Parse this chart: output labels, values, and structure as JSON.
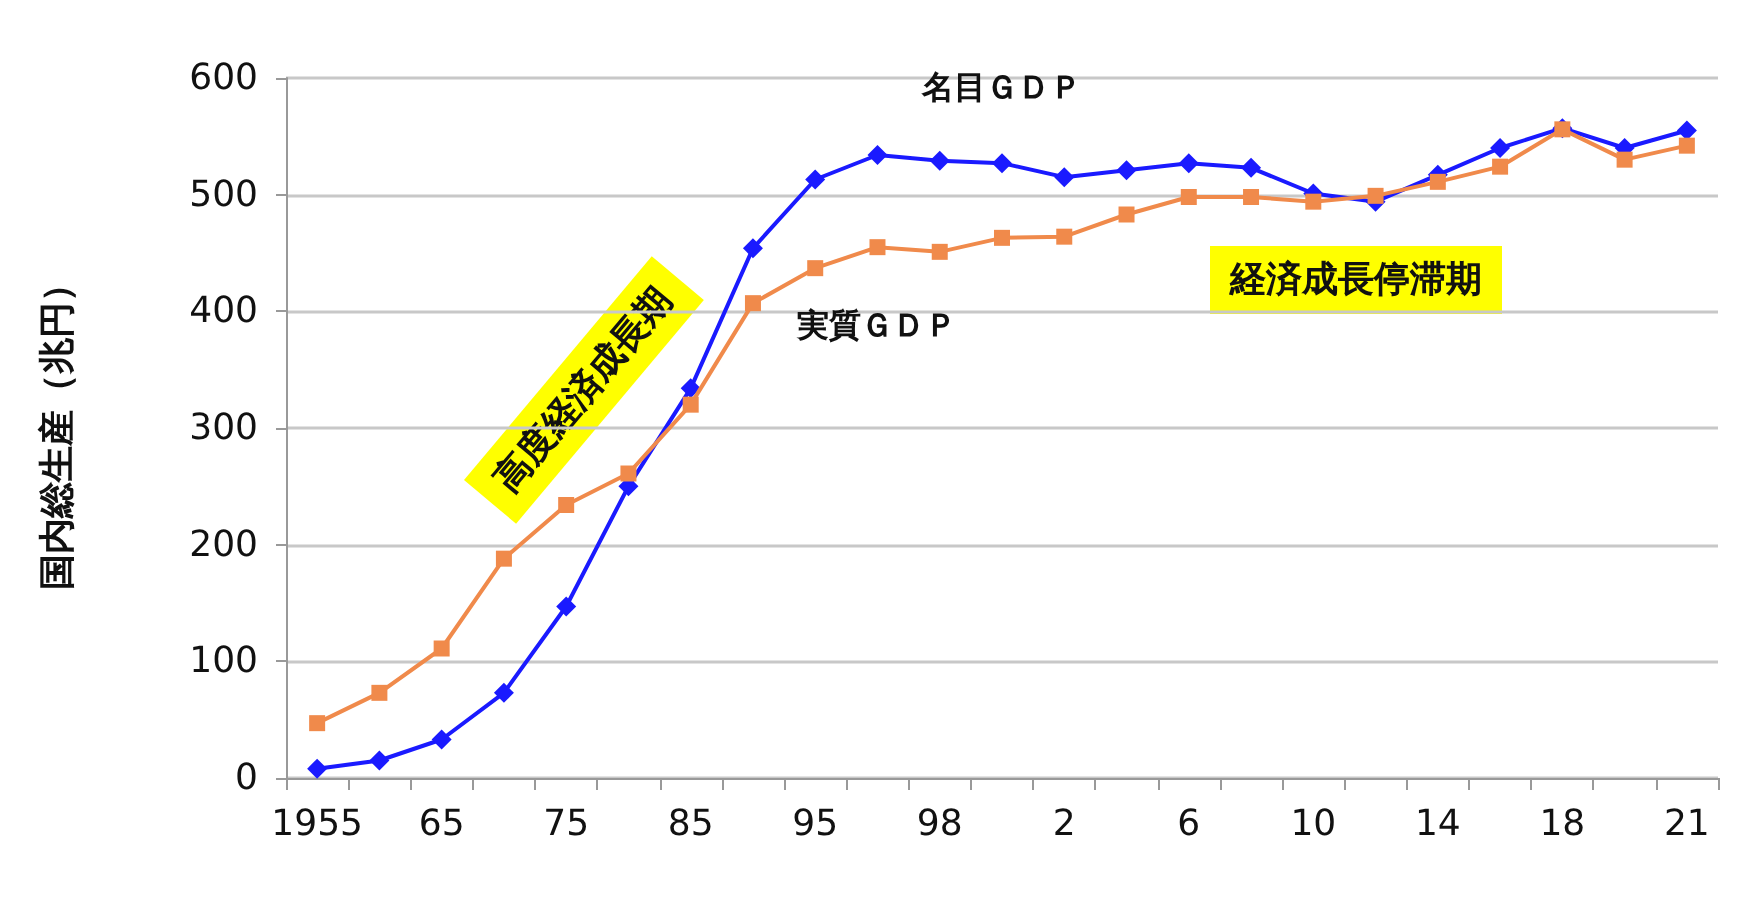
{
  "chart_data": {
    "type": "line",
    "ylabel": "国内総生産（兆円）",
    "categories": [
      "1955",
      null,
      "65",
      null,
      "75",
      null,
      "85",
      null,
      "95",
      null,
      "98",
      null,
      "2",
      null,
      "6",
      null,
      "10",
      null,
      "14",
      null,
      "18",
      null,
      "21"
    ],
    "series": [
      {
        "name": "名目ＧＤＰ",
        "color": "#1a1aff",
        "marker": "diamond",
        "values": [
          8,
          15,
          33,
          73,
          147,
          250,
          334,
          454,
          513,
          534,
          529,
          527,
          515,
          521,
          527,
          523,
          501,
          494,
          517,
          540,
          557,
          540,
          555
        ]
      },
      {
        "name": "実質ＧＤＰ",
        "color": "#f08a4b",
        "marker": "square",
        "values": [
          47,
          73,
          111,
          188,
          234,
          261,
          320,
          407,
          437,
          455,
          451,
          463,
          464,
          483,
          498,
          498,
          494,
          499,
          511,
          524,
          556,
          530,
          542
        ]
      }
    ],
    "ylim": [
      0,
      600
    ],
    "yticks": [
      0,
      100,
      200,
      300,
      400,
      500,
      600
    ],
    "grid": "y",
    "legend": false,
    "annotations": [
      "高度経済成長期",
      "経済成長停滞期"
    ]
  }
}
